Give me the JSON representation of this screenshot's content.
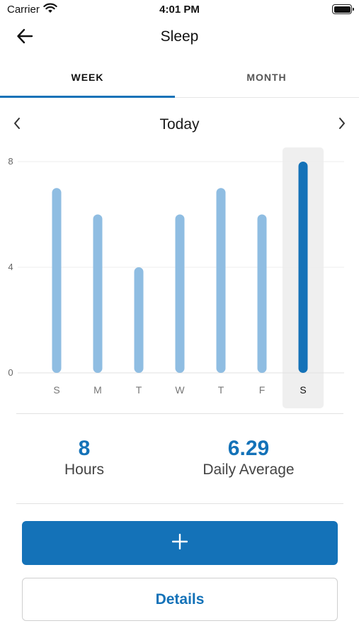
{
  "status_bar": {
    "carrier": "Carrier",
    "time": "4:01 PM",
    "icons": [
      "wifi-icon",
      "battery-icon"
    ]
  },
  "header": {
    "title": "Sleep",
    "back_icon": "arrow-left-icon"
  },
  "tabs": [
    {
      "label": "WEEK",
      "selected": true
    },
    {
      "label": "MONTH",
      "selected": false
    }
  ],
  "period": {
    "label": "Today",
    "prev_icon": "chevron-left-icon",
    "next_icon": "chevron-right-icon"
  },
  "chart_data": {
    "type": "bar",
    "categories": [
      "S",
      "M",
      "T",
      "W",
      "T",
      "F",
      "S"
    ],
    "values": [
      7,
      6,
      4,
      6,
      7,
      6,
      8
    ],
    "selected_index": 6,
    "yticks": [
      0,
      4,
      8
    ],
    "ylim": [
      0,
      8
    ],
    "grid": true,
    "colors": {
      "bar": "#8fbde2",
      "selected_bar": "#1472b8",
      "selected_bg": "#efefef"
    }
  },
  "stats": {
    "hours": {
      "value": "8",
      "label": "Hours"
    },
    "average": {
      "value": "6.29",
      "label": "Daily Average"
    }
  },
  "actions": {
    "add_icon": "plus-icon",
    "details_label": "Details"
  },
  "colors": {
    "accent": "#1472b8",
    "bar_light": "#8fbde2"
  }
}
